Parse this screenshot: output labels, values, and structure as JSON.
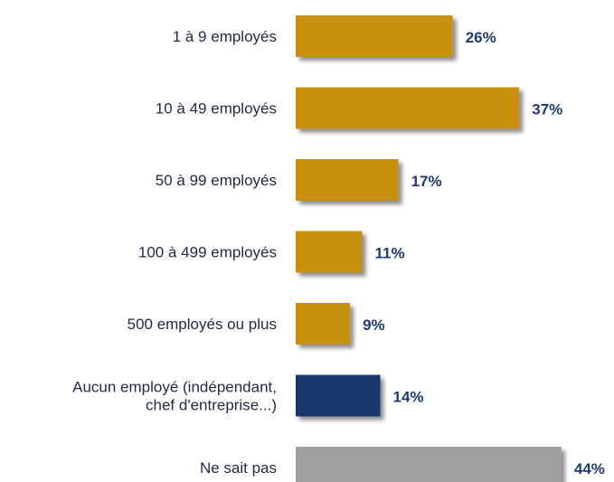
{
  "colors": {
    "gold": "#c9900a",
    "navy": "#17386d",
    "gray": "#a0a0a0",
    "value_text": "#1f3a6e",
    "category_text": "#1f2a44"
  },
  "chart_data": {
    "type": "bar",
    "orientation": "horizontal",
    "title": "",
    "xlabel": "",
    "ylabel": "",
    "xlim": [
      0,
      50
    ],
    "grid": false,
    "legend": "none",
    "value_format": "percent",
    "categories": [
      [
        "1 à 9 employés"
      ],
      [
        "10 à 49 employés"
      ],
      [
        "50 à 99 employés"
      ],
      [
        "100 à 499 employés"
      ],
      [
        "500 employés ou plus"
      ],
      [
        "Aucun employé (indépendant,",
        "chef d'entreprise...)"
      ],
      [
        "Ne sait pas"
      ]
    ],
    "values": [
      26,
      37,
      17,
      11,
      9,
      14,
      44
    ],
    "value_labels": [
      "26%",
      "37%",
      "17%",
      "11%",
      "9%",
      "14%",
      "44%"
    ],
    "bar_colors": [
      "gold",
      "gold",
      "gold",
      "gold",
      "gold",
      "navy",
      "gray"
    ]
  }
}
